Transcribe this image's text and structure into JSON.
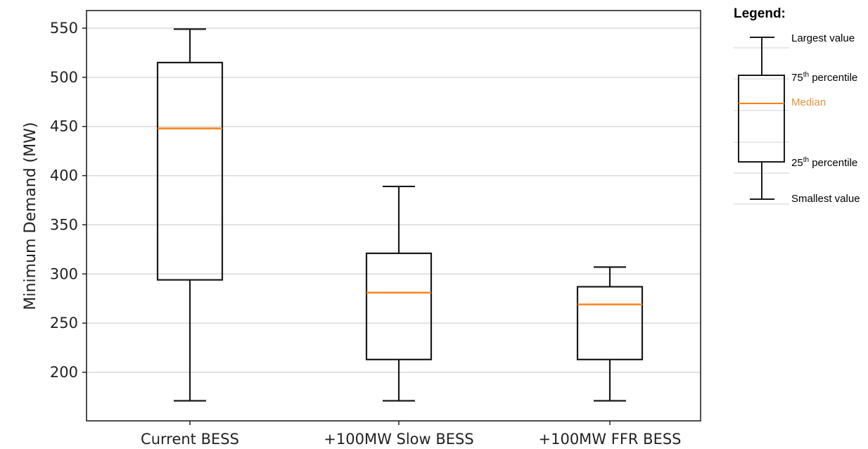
{
  "chart_data": {
    "type": "boxplot",
    "title": "",
    "xlabel": "",
    "ylabel": "Minimum Demand (MW)",
    "ylim": [
      160,
      570
    ],
    "yticks": [
      200,
      250,
      300,
      350,
      400,
      450,
      500,
      550
    ],
    "grid": "horizontal",
    "categories": [
      "Current BESS",
      "+100MW Slow BESS",
      "+100MW FFR BESS"
    ],
    "boxes": [
      {
        "category": "Current BESS",
        "min": 171,
        "q1": 294,
        "median": 448,
        "q3": 515,
        "max": 549
      },
      {
        "category": "+100MW Slow BESS",
        "min": 171,
        "q1": 213,
        "median": 281,
        "q3": 321,
        "max": 389
      },
      {
        "category": "+100MW FFR BESS",
        "min": 171,
        "q1": 213,
        "median": 269,
        "q3": 287,
        "max": 307
      }
    ],
    "colors": {
      "box": "#1a1a1a",
      "median": "#ff7f0e",
      "grid": "#d9d9d9"
    }
  },
  "legend": {
    "title": "Legend:",
    "largest": "Largest value",
    "q3_base": "75",
    "q3_sup": "th",
    "q3_rest": " percentile",
    "median": "Median",
    "q1_base": "25",
    "q1_sup": "th",
    "q1_rest": " percentile",
    "smallest": "Smallest value"
  }
}
